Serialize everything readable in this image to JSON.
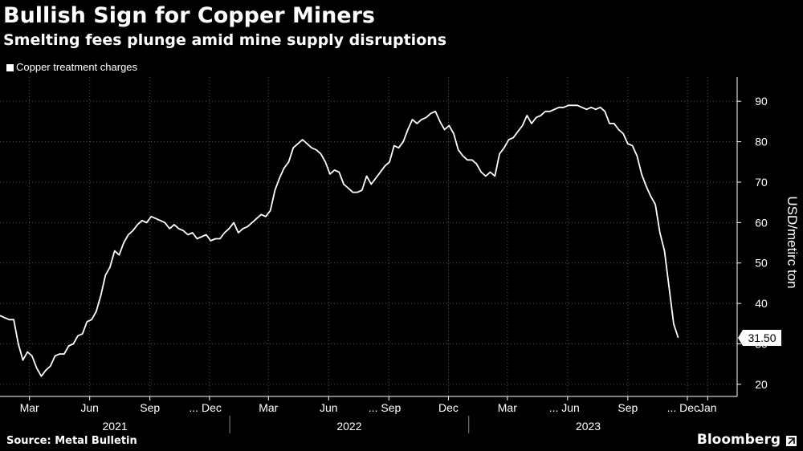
{
  "header": {
    "title": "Bullish Sign for Copper Miners",
    "subtitle": "Smelting fees plunge amid mine supply disruptions"
  },
  "legend": {
    "label": "Copper treatment charges"
  },
  "footer": {
    "source": "Source: Metal Bulletin",
    "brand": "Bloomberg"
  },
  "colors": {
    "background": "#000000",
    "line": "#ffffff",
    "grid": "#555555"
  },
  "chart_data": {
    "type": "line",
    "title": "Bullish Sign for Copper Miners",
    "subtitle": "Smelting fees plunge amid mine supply disruptions",
    "ylabel": "USD/metirc ton",
    "ylim": [
      17,
      96
    ],
    "yticks": [
      20,
      30,
      40,
      50,
      60,
      70,
      80,
      90
    ],
    "grid": true,
    "xaxis_type": "date",
    "x_range": [
      "2021-01-15",
      "2024-02-15"
    ],
    "x_tick_labels": [
      {
        "label": "Mar",
        "date": "2021-03-01"
      },
      {
        "label": "Jun",
        "date": "2021-06-01"
      },
      {
        "label": "Sep",
        "date": "2021-09-01"
      },
      {
        "label": "... Dec",
        "date": "2021-12-01"
      },
      {
        "label": "Mar",
        "date": "2022-03-01"
      },
      {
        "label": "Jun",
        "date": "2022-06-01"
      },
      {
        "label": "... Sep",
        "date": "2022-09-01"
      },
      {
        "label": "Dec",
        "date": "2022-12-01"
      },
      {
        "label": "Mar",
        "date": "2023-03-01"
      },
      {
        "label": "... Jun",
        "date": "2023-06-01"
      },
      {
        "label": "Sep",
        "date": "2023-09-01"
      },
      {
        "label": "... Dec",
        "date": "2023-12-01"
      },
      {
        "label": "Jan",
        "date": "2024-01-01"
      }
    ],
    "year_labels": [
      {
        "label": "2021",
        "from": "2021-01-15",
        "to": "2022-01-01"
      },
      {
        "label": "2022",
        "from": "2022-01-01",
        "to": "2023-01-01"
      },
      {
        "label": "2023",
        "from": "2023-01-01",
        "to": "2024-01-01"
      }
    ],
    "last_value_label": "31.50",
    "legend_position": "top-left",
    "series": [
      {
        "name": "Copper treatment charges",
        "points": [
          [
            "2021-01-15",
            37
          ],
          [
            "2021-01-22",
            36.5
          ],
          [
            "2021-01-29",
            36
          ],
          [
            "2021-02-05",
            36
          ],
          [
            "2021-02-12",
            30
          ],
          [
            "2021-02-19",
            26
          ],
          [
            "2021-02-26",
            28
          ],
          [
            "2021-03-05",
            27
          ],
          [
            "2021-03-12",
            24
          ],
          [
            "2021-03-19",
            22
          ],
          [
            "2021-03-26",
            23.5
          ],
          [
            "2021-04-02",
            24.5
          ],
          [
            "2021-04-09",
            27
          ],
          [
            "2021-04-16",
            27.5
          ],
          [
            "2021-04-23",
            27.5
          ],
          [
            "2021-04-30",
            29.5
          ],
          [
            "2021-05-07",
            30
          ],
          [
            "2021-05-14",
            32
          ],
          [
            "2021-05-21",
            32.5
          ],
          [
            "2021-05-28",
            35.5
          ],
          [
            "2021-06-04",
            36
          ],
          [
            "2021-06-11",
            38
          ],
          [
            "2021-06-18",
            42
          ],
          [
            "2021-06-25",
            47
          ],
          [
            "2021-07-02",
            49
          ],
          [
            "2021-07-09",
            53
          ],
          [
            "2021-07-16",
            52
          ],
          [
            "2021-07-23",
            55
          ],
          [
            "2021-07-30",
            57
          ],
          [
            "2021-08-06",
            58
          ],
          [
            "2021-08-13",
            59.5
          ],
          [
            "2021-08-20",
            60.5
          ],
          [
            "2021-08-27",
            60
          ],
          [
            "2021-09-03",
            61.5
          ],
          [
            "2021-09-10",
            61
          ],
          [
            "2021-09-17",
            60.5
          ],
          [
            "2021-09-24",
            60
          ],
          [
            "2021-10-01",
            58.5
          ],
          [
            "2021-10-08",
            59.5
          ],
          [
            "2021-10-15",
            58.5
          ],
          [
            "2021-10-22",
            58
          ],
          [
            "2021-10-29",
            57
          ],
          [
            "2021-11-05",
            57.5
          ],
          [
            "2021-11-12",
            56
          ],
          [
            "2021-11-19",
            56.5
          ],
          [
            "2021-11-26",
            57
          ],
          [
            "2021-12-03",
            55.5
          ],
          [
            "2021-12-10",
            56
          ],
          [
            "2021-12-17",
            56
          ],
          [
            "2021-12-24",
            57.5
          ],
          [
            "2021-12-31",
            58.5
          ],
          [
            "2022-01-07",
            60
          ],
          [
            "2022-01-14",
            57.5
          ],
          [
            "2022-01-21",
            58.5
          ],
          [
            "2022-01-28",
            59
          ],
          [
            "2022-02-04",
            60
          ],
          [
            "2022-02-11",
            61
          ],
          [
            "2022-02-18",
            62
          ],
          [
            "2022-02-25",
            61.5
          ],
          [
            "2022-03-04",
            63
          ],
          [
            "2022-03-11",
            68
          ],
          [
            "2022-03-18",
            71
          ],
          [
            "2022-03-25",
            73.5
          ],
          [
            "2022-04-01",
            75
          ],
          [
            "2022-04-08",
            78.5
          ],
          [
            "2022-04-15",
            79.5
          ],
          [
            "2022-04-22",
            80.5
          ],
          [
            "2022-04-29",
            79.5
          ],
          [
            "2022-05-06",
            78.5
          ],
          [
            "2022-05-13",
            78
          ],
          [
            "2022-05-20",
            77
          ],
          [
            "2022-05-27",
            75
          ],
          [
            "2022-06-03",
            72
          ],
          [
            "2022-06-10",
            73
          ],
          [
            "2022-06-17",
            72.5
          ],
          [
            "2022-06-24",
            69.5
          ],
          [
            "2022-07-01",
            68.5
          ],
          [
            "2022-07-08",
            67.5
          ],
          [
            "2022-07-15",
            67.5
          ],
          [
            "2022-07-22",
            68
          ],
          [
            "2022-07-29",
            71.5
          ],
          [
            "2022-08-05",
            69.5
          ],
          [
            "2022-08-12",
            71
          ],
          [
            "2022-08-19",
            72.5
          ],
          [
            "2022-08-26",
            74
          ],
          [
            "2022-09-02",
            75
          ],
          [
            "2022-09-09",
            79
          ],
          [
            "2022-09-16",
            78.5
          ],
          [
            "2022-09-23",
            80
          ],
          [
            "2022-09-30",
            83
          ],
          [
            "2022-10-07",
            85.5
          ],
          [
            "2022-10-14",
            84.5
          ],
          [
            "2022-10-21",
            85.5
          ],
          [
            "2022-10-28",
            86
          ],
          [
            "2022-11-04",
            87
          ],
          [
            "2022-11-11",
            87.5
          ],
          [
            "2022-11-18",
            85
          ],
          [
            "2022-11-25",
            83
          ],
          [
            "2022-12-02",
            84
          ],
          [
            "2022-12-09",
            82
          ],
          [
            "2022-12-16",
            78
          ],
          [
            "2022-12-23",
            76.5
          ],
          [
            "2022-12-30",
            75.5
          ],
          [
            "2023-01-06",
            75.5
          ],
          [
            "2023-01-13",
            74.5
          ],
          [
            "2023-01-20",
            72.5
          ],
          [
            "2023-01-27",
            71.5
          ],
          [
            "2023-02-03",
            72.5
          ],
          [
            "2023-02-10",
            71.5
          ],
          [
            "2023-02-17",
            77
          ],
          [
            "2023-02-24",
            78.5
          ],
          [
            "2023-03-03",
            80.5
          ],
          [
            "2023-03-10",
            81
          ],
          [
            "2023-03-17",
            82.5
          ],
          [
            "2023-03-24",
            84
          ],
          [
            "2023-03-31",
            86.5
          ],
          [
            "2023-04-07",
            84.5
          ],
          [
            "2023-04-14",
            86
          ],
          [
            "2023-04-21",
            86.5
          ],
          [
            "2023-04-28",
            87.5
          ],
          [
            "2023-05-05",
            87.5
          ],
          [
            "2023-05-12",
            88
          ],
          [
            "2023-05-19",
            88.5
          ],
          [
            "2023-05-26",
            88.5
          ],
          [
            "2023-06-02",
            89
          ],
          [
            "2023-06-09",
            89
          ],
          [
            "2023-06-16",
            89
          ],
          [
            "2023-06-23",
            88.5
          ],
          [
            "2023-06-30",
            88
          ],
          [
            "2023-07-07",
            88.5
          ],
          [
            "2023-07-14",
            88
          ],
          [
            "2023-07-21",
            88.5
          ],
          [
            "2023-07-28",
            87.5
          ],
          [
            "2023-08-04",
            84.5
          ],
          [
            "2023-08-11",
            84.5
          ],
          [
            "2023-08-18",
            83
          ],
          [
            "2023-08-25",
            82
          ],
          [
            "2023-09-01",
            79.5
          ],
          [
            "2023-09-08",
            79
          ],
          [
            "2023-09-15",
            76.5
          ],
          [
            "2023-09-22",
            72
          ],
          [
            "2023-09-29",
            69
          ],
          [
            "2023-10-06",
            66.5
          ],
          [
            "2023-10-13",
            64.5
          ],
          [
            "2023-10-20",
            57.5
          ],
          [
            "2023-10-27",
            53
          ],
          [
            "2023-11-03",
            44
          ],
          [
            "2023-11-10",
            35
          ],
          [
            "2023-11-17",
            31.5
          ]
        ]
      }
    ]
  }
}
